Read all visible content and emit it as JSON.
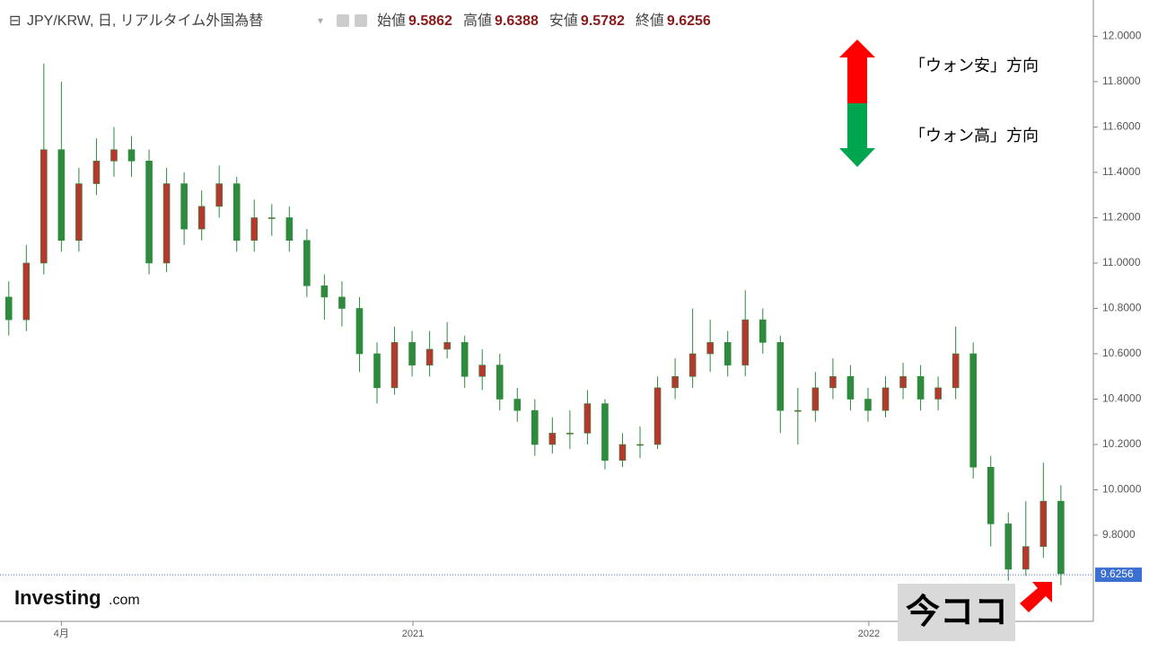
{
  "chart_data": {
    "type": "candlestick",
    "title": "JPY/KRW, 日, リアルタイム外国為替",
    "ohlc_header": [
      {
        "label": "始値",
        "value": 9.5862
      },
      {
        "label": "高値",
        "value": 9.6388
      },
      {
        "label": "安値",
        "value": 9.5782
      },
      {
        "label": "終値",
        "value": 9.6256
      }
    ],
    "x": [
      1,
      3,
      5,
      7,
      9,
      11,
      13,
      15,
      17,
      19,
      21,
      23,
      25,
      27,
      29,
      31,
      33,
      35,
      37,
      39,
      41,
      43,
      45,
      47,
      49,
      51,
      53,
      55,
      57,
      59,
      61,
      63,
      65,
      67,
      69,
      71,
      73,
      75,
      77,
      79,
      81,
      83,
      85,
      87,
      89,
      91,
      93,
      95,
      97,
      99,
      101,
      103,
      105,
      107,
      109,
      111,
      113,
      115,
      117,
      119,
      121
    ],
    "open": [
      10.85,
      10.75,
      11.0,
      11.5,
      11.1,
      11.35,
      11.45,
      11.5,
      11.45,
      11.0,
      11.35,
      11.15,
      11.25,
      11.35,
      11.1,
      11.2,
      11.2,
      11.1,
      10.9,
      10.85,
      10.8,
      10.6,
      10.45,
      10.65,
      10.55,
      10.62,
      10.65,
      10.5,
      10.55,
      10.4,
      10.35,
      10.2,
      10.25,
      10.25,
      10.38,
      10.13,
      10.2,
      10.2,
      10.45,
      10.5,
      10.6,
      10.65,
      10.55,
      10.75,
      10.65,
      10.35,
      10.35,
      10.45,
      10.5,
      10.4,
      10.35,
      10.45,
      10.5,
      10.4,
      10.45,
      10.6,
      10.1,
      9.85,
      9.65,
      9.75,
      9.95
    ],
    "high": [
      10.92,
      11.08,
      11.88,
      11.8,
      11.42,
      11.55,
      11.6,
      11.56,
      11.5,
      11.42,
      11.4,
      11.32,
      11.43,
      11.38,
      11.28,
      11.26,
      11.25,
      11.15,
      10.95,
      10.92,
      10.85,
      10.65,
      10.72,
      10.7,
      10.7,
      10.74,
      10.68,
      10.62,
      10.6,
      10.45,
      10.4,
      10.32,
      10.35,
      10.44,
      10.4,
      10.25,
      10.28,
      10.5,
      10.58,
      10.8,
      10.75,
      10.7,
      10.88,
      10.8,
      10.68,
      10.45,
      10.52,
      10.58,
      10.55,
      10.45,
      10.5,
      10.56,
      10.55,
      10.5,
      10.72,
      10.65,
      10.15,
      9.9,
      9.95,
      10.12,
      10.02
    ],
    "low": [
      10.68,
      10.7,
      10.95,
      11.05,
      11.05,
      11.3,
      11.38,
      11.38,
      10.95,
      10.96,
      11.08,
      11.1,
      11.2,
      11.05,
      11.05,
      11.12,
      11.05,
      10.85,
      10.75,
      10.72,
      10.52,
      10.38,
      10.42,
      10.5,
      10.5,
      10.58,
      10.45,
      10.44,
      10.35,
      10.3,
      10.15,
      10.16,
      10.18,
      10.2,
      10.09,
      10.1,
      10.14,
      10.18,
      10.4,
      10.45,
      10.52,
      10.5,
      10.5,
      10.6,
      10.25,
      10.2,
      10.3,
      10.4,
      10.35,
      10.3,
      10.32,
      10.4,
      10.35,
      10.35,
      10.4,
      10.05,
      9.75,
      9.6,
      9.62,
      9.7,
      9.58
    ],
    "close": [
      10.75,
      11.0,
      11.5,
      11.1,
      11.35,
      11.45,
      11.5,
      11.45,
      11.0,
      11.35,
      11.15,
      11.25,
      11.35,
      11.1,
      11.2,
      11.2,
      11.1,
      10.9,
      10.85,
      10.8,
      10.6,
      10.45,
      10.65,
      10.55,
      10.62,
      10.65,
      10.5,
      10.55,
      10.4,
      10.35,
      10.2,
      10.25,
      10.25,
      10.38,
      10.13,
      10.2,
      10.2,
      10.45,
      10.5,
      10.6,
      10.65,
      10.55,
      10.75,
      10.65,
      10.35,
      10.35,
      10.45,
      10.5,
      10.4,
      10.35,
      10.45,
      10.5,
      10.4,
      10.45,
      10.6,
      10.1,
      9.85,
      9.65,
      9.75,
      9.95,
      9.63
    ],
    "up_color": "#b5372e",
    "down_color": "#2e8b3e",
    "xlim": [
      0,
      124.7
    ],
    "xticks": [
      {
        "value": 7,
        "label": "4月"
      },
      {
        "value": 47.1,
        "label": "2021"
      },
      {
        "value": 99.1,
        "label": "2022"
      }
    ],
    "ylim": [
      9.42,
      12.16
    ],
    "yticks": [
      {
        "value": 9.8,
        "label": "9.8000"
      },
      {
        "value": 10.0,
        "label": "10.0000"
      },
      {
        "value": 10.2,
        "label": "10.2000"
      },
      {
        "value": 10.4,
        "label": "10.4000"
      },
      {
        "value": 10.6,
        "label": "10.6000"
      },
      {
        "value": 10.8,
        "label": "10.8000"
      },
      {
        "value": 11.0,
        "label": "11.0000"
      },
      {
        "value": 11.2,
        "label": "11.2000"
      },
      {
        "value": 11.4,
        "label": "11.4000"
      },
      {
        "value": 11.6,
        "label": "11.6000"
      },
      {
        "value": 11.8,
        "label": "11.8000"
      },
      {
        "value": 12.0,
        "label": "12.0000"
      }
    ],
    "last_price": 9.6256,
    "annotations": {
      "up": "「ウォン安」方向",
      "down": "「ウォン高」方向",
      "now": "今ココ"
    },
    "logo": {
      "brand": "Investing",
      "suffix": ".com"
    }
  }
}
